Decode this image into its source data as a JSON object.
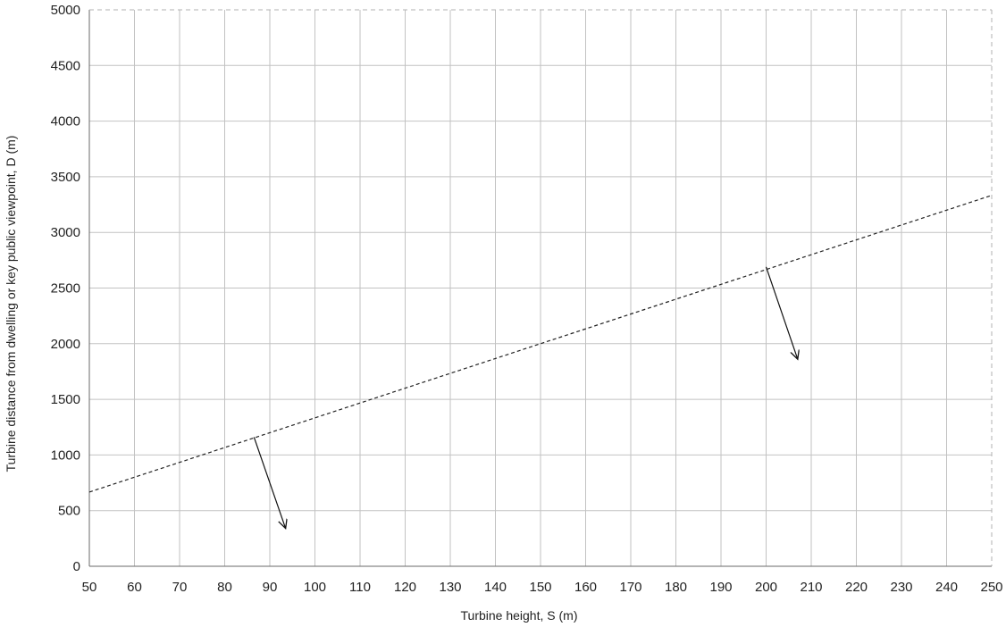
{
  "chart_data": {
    "type": "line",
    "title": "",
    "xlabel": "Turbine height, S (m)",
    "ylabel": "Turbine distance from dwelling or key public viewpoint, D (m)",
    "xlim": [
      50,
      250
    ],
    "ylim": [
      0,
      5000
    ],
    "x_ticks": [
      50,
      60,
      70,
      80,
      90,
      100,
      110,
      120,
      130,
      140,
      150,
      160,
      170,
      180,
      190,
      200,
      210,
      220,
      230,
      240,
      250
    ],
    "y_ticks": [
      0,
      500,
      1000,
      1500,
      2000,
      2500,
      3000,
      3500,
      4000,
      4500,
      5000
    ],
    "grid": true,
    "series": [
      {
        "x": [
          50,
          250
        ],
        "y": [
          667,
          3333
        ],
        "style": "dashed",
        "color": "#222222"
      }
    ],
    "annotations": [
      {
        "type": "arrow",
        "from": [
          86.5,
          1160
        ],
        "to": [
          93.5,
          340
        ]
      },
      {
        "type": "arrow",
        "from": [
          200,
          2690
        ],
        "to": [
          207,
          1860
        ]
      }
    ]
  }
}
